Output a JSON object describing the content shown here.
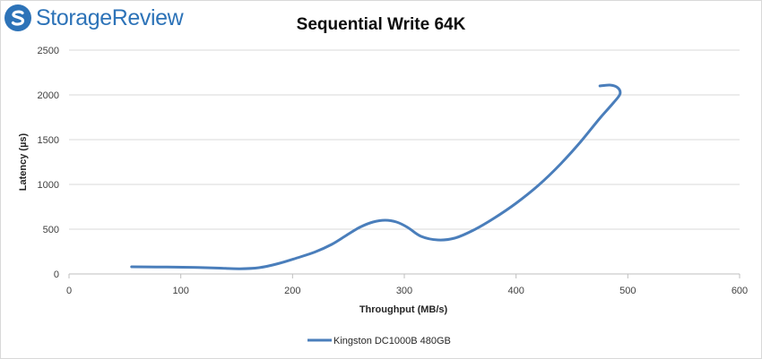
{
  "brand": {
    "name": "StorageReview",
    "color": "#2d73b8"
  },
  "chart_data": {
    "type": "line",
    "title": "Sequential Write 64K",
    "xlabel": "Throughput (MB/s)",
    "ylabel": "Latency (µs)",
    "xlim": [
      0,
      600
    ],
    "ylim": [
      0,
      2500
    ],
    "xticks": [
      0,
      100,
      200,
      300,
      400,
      500,
      600
    ],
    "yticks": [
      0,
      500,
      1000,
      1500,
      2000,
      2500
    ],
    "grid": "horizontal",
    "legend_position": "bottom",
    "series": [
      {
        "name": "Kingston DC1000B 480GB",
        "color": "#4a7ebb",
        "x": [
          56,
          78,
          95,
          115,
          135,
          153,
          170,
          187,
          203,
          220,
          235,
          248,
          260,
          272,
          283,
          293,
          303,
          315,
          330,
          345,
          362,
          380,
          400,
          420,
          440,
          458,
          475,
          487,
          493,
          491,
          484,
          475
        ],
        "y": [
          80,
          78,
          76,
          73,
          65,
          58,
          70,
          115,
          175,
          245,
          330,
          430,
          520,
          580,
          600,
          580,
          520,
          420,
          380,
          400,
          490,
          620,
          790,
          990,
          1230,
          1480,
          1740,
          1910,
          2010,
          2080,
          2110,
          2100
        ]
      }
    ]
  }
}
